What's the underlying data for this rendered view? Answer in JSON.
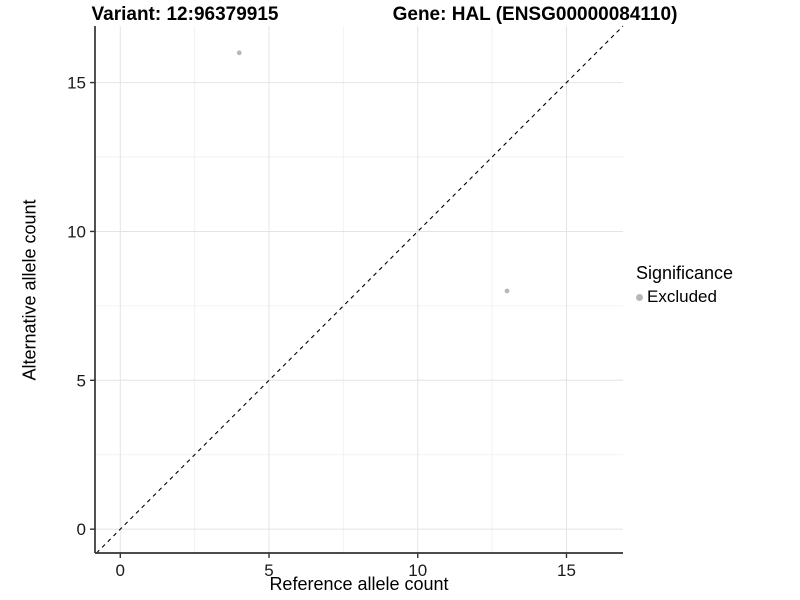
{
  "chart_data": {
    "type": "scatter",
    "title_left": "Variant: 12:96379915",
    "title_right": "Gene: HAL (ENSG00000084110)",
    "xlabel": "Reference allele count",
    "ylabel": "Alternative allele count",
    "xlim": [
      -0.85,
      16.9
    ],
    "ylim": [
      -0.8,
      16.9
    ],
    "x_ticks": [
      0,
      5,
      10,
      15
    ],
    "y_ticks": [
      0,
      5,
      10,
      15
    ],
    "x_minor_ticks": [
      2.5,
      7.5,
      12.5
    ],
    "y_minor_ticks": [
      2.5,
      7.5,
      12.5
    ],
    "grid": true,
    "identity_line": {
      "style": "dashed",
      "color": "#000000"
    },
    "series": [
      {
        "name": "Excluded",
        "color": "#b8b8b8",
        "points": [
          {
            "x": 4,
            "y": 16
          },
          {
            "x": 13,
            "y": 8
          }
        ]
      }
    ],
    "legend": {
      "title": "Significance",
      "position": "right",
      "items": [
        {
          "label": "Excluded",
          "color": "#b8b8b8"
        }
      ]
    }
  },
  "colors": {
    "background": "#ffffff",
    "grid_major": "#e4e4e4",
    "grid_minor": "#f2f2f2",
    "axis_line": "#333333",
    "tick_text": "#1a1a1a",
    "point": "#b8b8b8",
    "text": "#000000"
  }
}
